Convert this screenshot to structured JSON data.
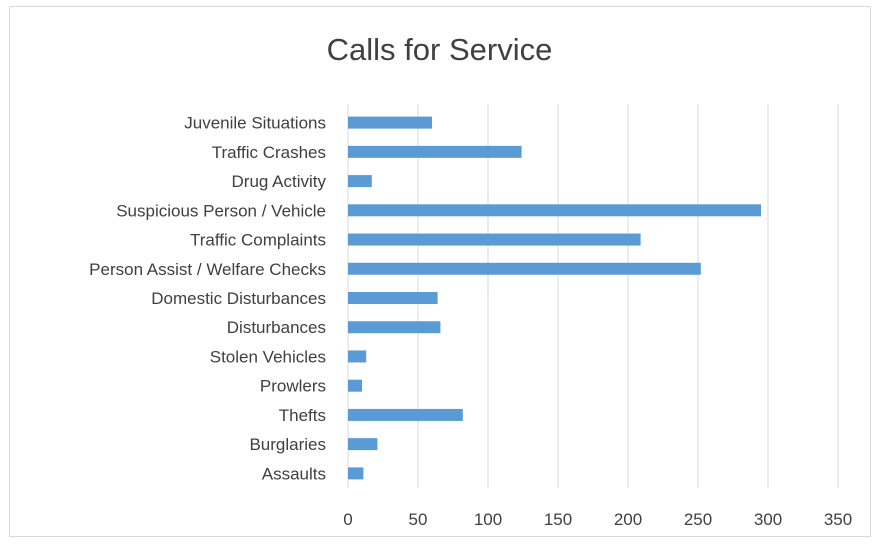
{
  "chart_data": {
    "type": "bar",
    "orientation": "horizontal",
    "title": "Calls for Service",
    "xlabel": "",
    "ylabel": "",
    "categories": [
      "Juvenile Situations",
      "Traffic Crashes",
      "Drug Activity",
      "Suspicious Person / Vehicle",
      "Traffic Complaints",
      "Person Assist / Welfare Checks",
      "Domestic Disturbances",
      "Disturbances",
      "Stolen Vehicles",
      "Prowlers",
      "Thefts",
      "Burglaries",
      "Assaults"
    ],
    "values": [
      60,
      124,
      17,
      295,
      209,
      252,
      64,
      66,
      13,
      10,
      82,
      21,
      11
    ],
    "xlim": [
      0,
      350
    ],
    "xticks": [
      "0",
      "50",
      "100",
      "150",
      "200",
      "250",
      "300",
      "350"
    ],
    "grid": "vertical",
    "legend": "none",
    "bar_color": "#5b9bd5",
    "grid_color": "#d9d9d9"
  }
}
